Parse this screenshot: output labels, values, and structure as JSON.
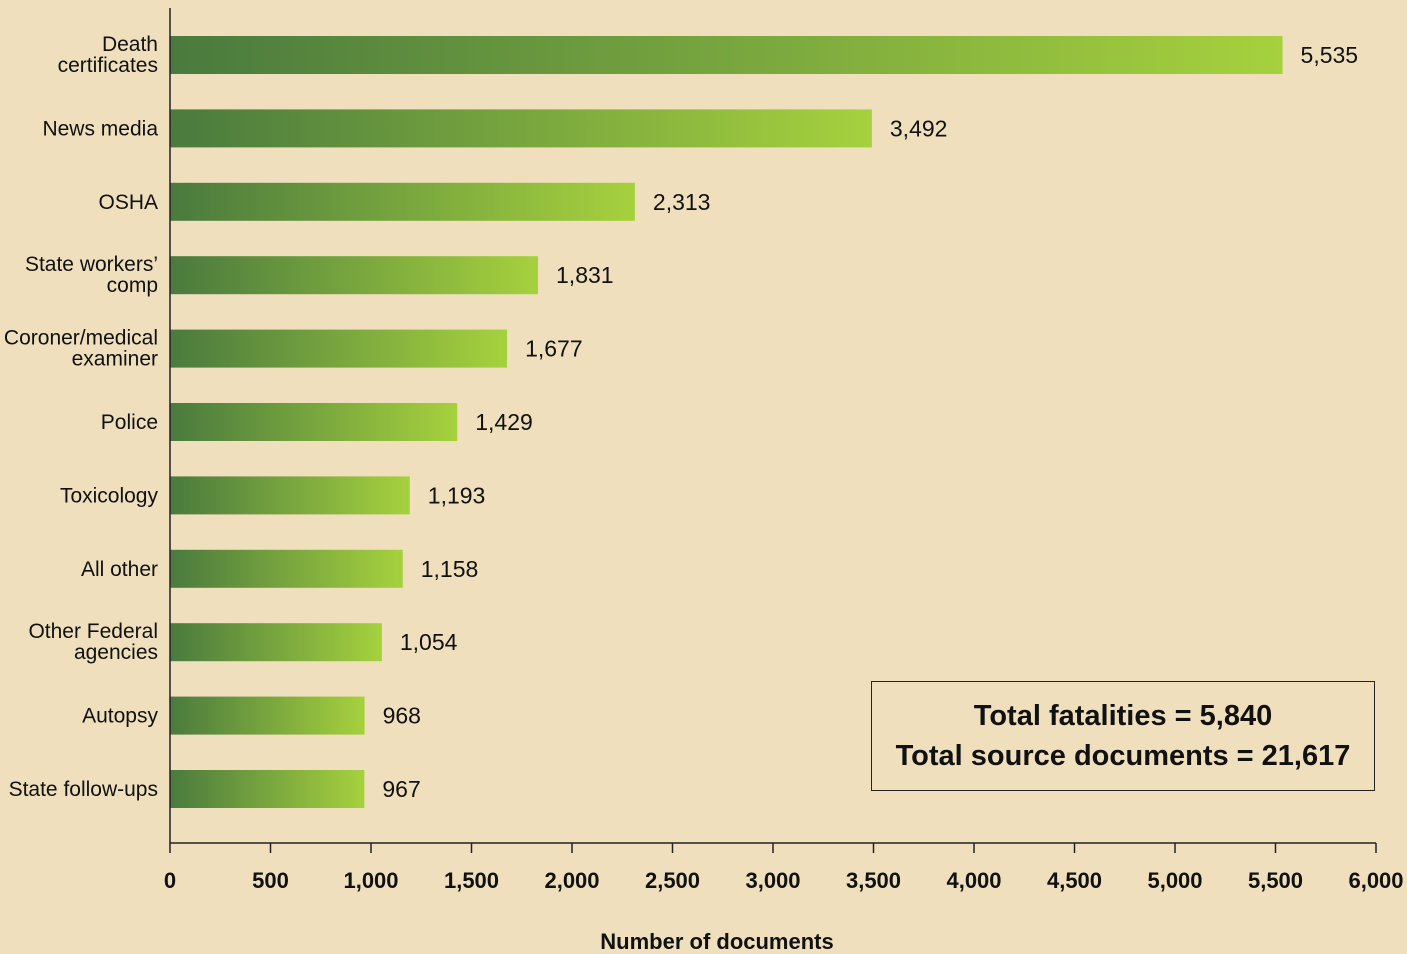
{
  "chart_data": {
    "type": "bar",
    "orientation": "horizontal",
    "categories": [
      [
        "Death",
        "certificates"
      ],
      [
        "News media"
      ],
      [
        "OSHA"
      ],
      [
        "State workers’",
        "comp"
      ],
      [
        "Coroner/medical",
        "examiner"
      ],
      [
        "Police"
      ],
      [
        "Toxicology"
      ],
      [
        "All other"
      ],
      [
        "Other Federal",
        "agencies"
      ],
      [
        "Autopsy"
      ],
      [
        "State follow-ups"
      ]
    ],
    "values": [
      5535,
      3492,
      2313,
      1831,
      1677,
      1429,
      1193,
      1158,
      1054,
      968,
      967
    ],
    "value_labels": [
      "5,535",
      "3,492",
      "2,313",
      "1,831",
      "1,677",
      "1,429",
      "1,193",
      "1,158",
      "1,054",
      "968",
      "967"
    ],
    "xlabel": "Number of documents",
    "ylabel": "",
    "xlim": [
      0,
      6000
    ],
    "x_ticks": [
      0,
      500,
      1000,
      1500,
      2000,
      2500,
      3000,
      3500,
      4000,
      4500,
      5000,
      5500,
      6000
    ],
    "x_tick_labels": [
      "0",
      "500",
      "1,000",
      "1,500",
      "2,000",
      "2,500",
      "3,000",
      "3,500",
      "4,000",
      "4,500",
      "5,000",
      "5,500",
      "6,000"
    ],
    "grid": false,
    "bar_gradient": [
      "#4a7a3e",
      "#a6d13e"
    ],
    "annotation": {
      "line1": "Total fatalities = 5,840",
      "line2": "Total source documents = 21,617"
    }
  },
  "colors": {
    "background": "#efdfbd",
    "bar_start": "#4a7a3e",
    "bar_end": "#a6d13e",
    "text": "#111111"
  }
}
